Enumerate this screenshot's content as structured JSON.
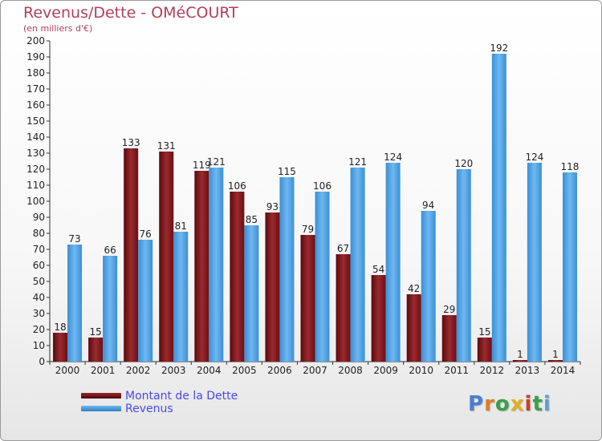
{
  "header": {
    "title": "Revenus/Dette - OMéCOURT",
    "subtitle": "(en milliers d'€)"
  },
  "legend": {
    "debt_label": "Montant de la Dette",
    "revenue_label": "Revenus"
  },
  "logo": {
    "text": "Proxiti"
  },
  "colors": {
    "debt": "#7a1418",
    "revenue": "#3f9be0",
    "title": "#b0405a",
    "legend_text": "#4a4ae8"
  },
  "chart_data": {
    "type": "bar",
    "title": "Revenus/Dette - OMéCOURT",
    "subtitle": "(en milliers d'€)",
    "xlabel": "",
    "ylabel": "",
    "ylim": [
      0,
      200
    ],
    "ytick_step": 10,
    "grid": false,
    "legend_position": "bottom-left",
    "categories": [
      "2000",
      "2001",
      "2002",
      "2003",
      "2004",
      "2005",
      "2006",
      "2007",
      "2008",
      "2009",
      "2010",
      "2011",
      "2012",
      "2013",
      "2014"
    ],
    "series": [
      {
        "name": "Montant de la Dette",
        "values": [
          18,
          15,
          133,
          131,
          119,
          106,
          93,
          79,
          67,
          54,
          42,
          29,
          15,
          1,
          1
        ]
      },
      {
        "name": "Revenus",
        "values": [
          73,
          66,
          76,
          81,
          121,
          85,
          115,
          106,
          121,
          124,
          94,
          120,
          192,
          124,
          118
        ]
      }
    ]
  }
}
